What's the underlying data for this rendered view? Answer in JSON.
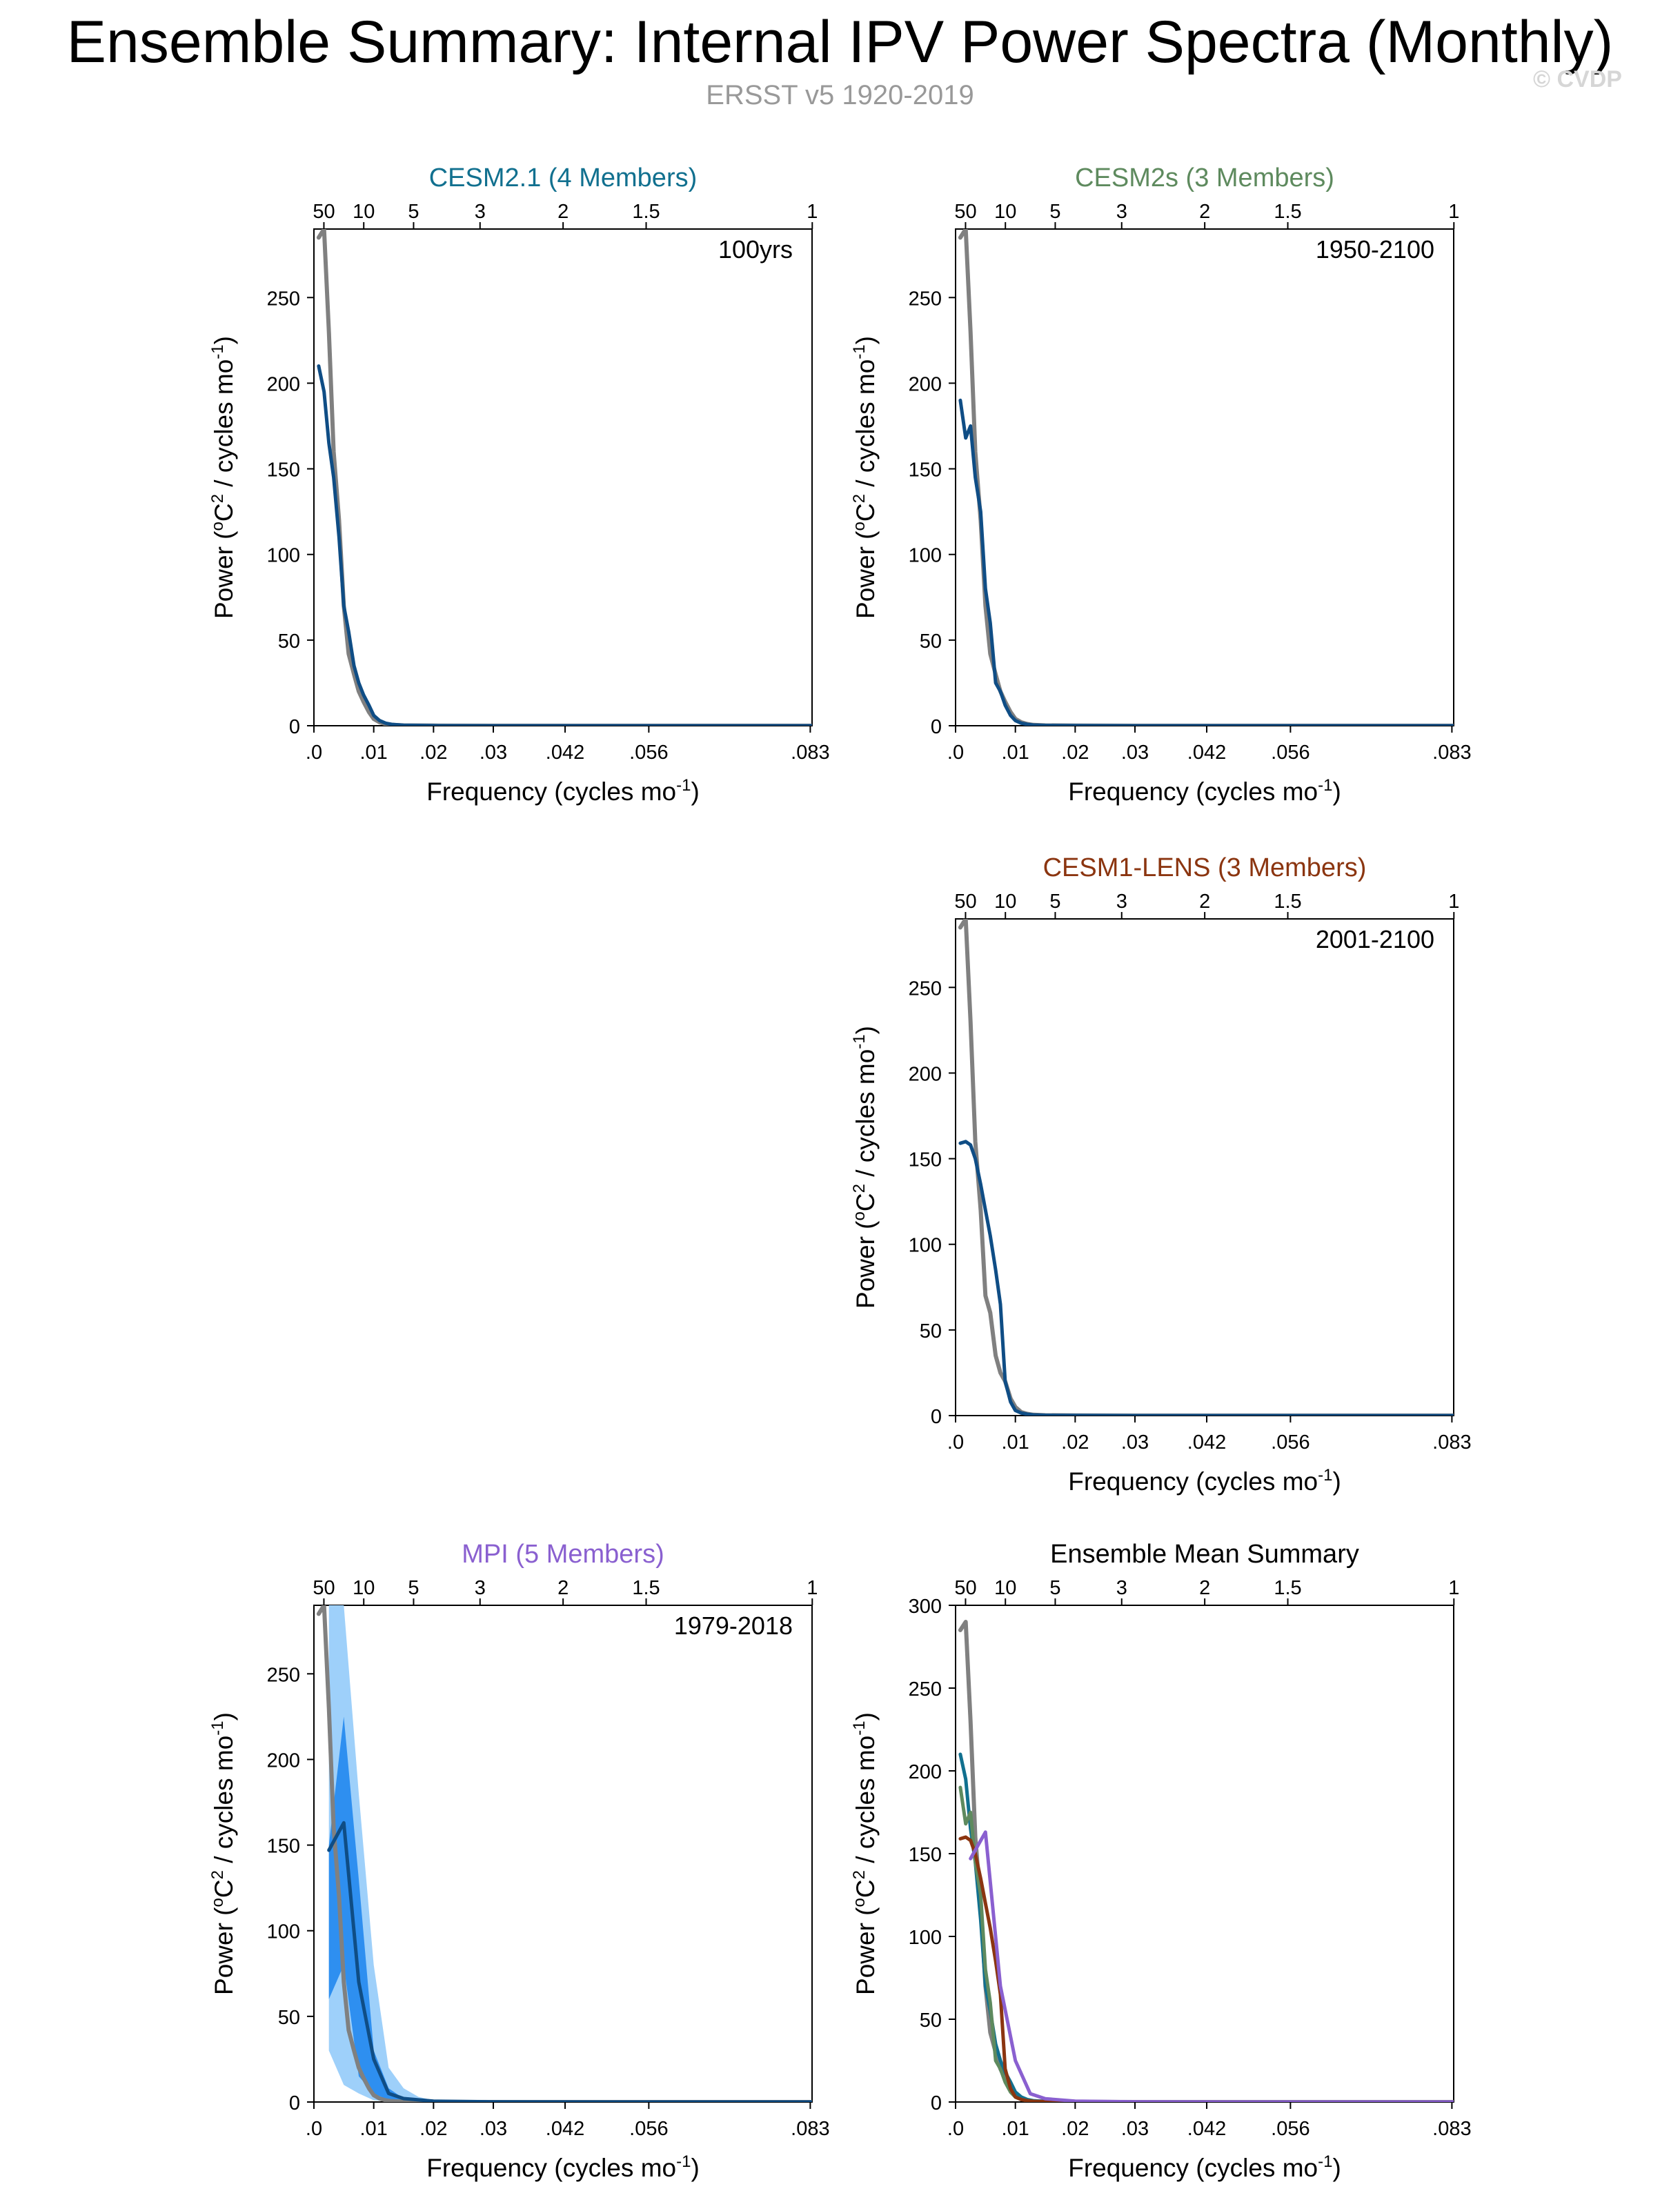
{
  "page": {
    "title": "Ensemble Summary: Internal IPV Power Spectra (Monthly)",
    "subtitle": "ERSST v5 1920-2019",
    "copyright": "© CVDP"
  },
  "colors": {
    "observed": "#808080",
    "model": "#0f4d85",
    "spread_outer": "#9ed0fa",
    "spread_inner": "#2e8ff0",
    "cesm21": "#11708f",
    "cesm2s": "#5e8a5e",
    "cesm1": "#8b3510",
    "mpi": "#8a60d0"
  },
  "chart_data": [
    {
      "type": "line",
      "title": "CESM2.1 (4 Members)",
      "title_color": "#11708f",
      "period": "100yrs",
      "xlabel": "Frequency (cycles mo",
      "xlabel_sup": "-1",
      "xlabel_end": ")",
      "ylabel": "Power (",
      "ylabel_sup1": "o",
      "ylabel_mid": "C",
      "ylabel_sup2": "2",
      "ylabel_mid2": " / cycles mo",
      "ylabel_sup3": "-1",
      "ylabel_end": ")",
      "xlim": [
        0,
        0.0833
      ],
      "ylim": [
        0,
        290
      ],
      "x_ticks": [
        0,
        0.01,
        0.02,
        0.03,
        0.042,
        0.056,
        0.083
      ],
      "x_tick_labels": [
        ".0",
        ".01",
        ".02",
        ".03",
        ".042",
        ".056",
        ".083"
      ],
      "y_ticks": [
        0,
        50,
        100,
        150,
        200,
        250
      ],
      "y_tick_labels": [
        "0",
        "50",
        "100",
        "150",
        "200",
        "250"
      ],
      "top_ticks": [
        0.001667,
        0.008333,
        0.016667,
        0.027778,
        0.041667,
        0.055556,
        0.083333
      ],
      "top_tick_labels": [
        "50",
        "10",
        "5",
        "3",
        "2",
        "1.5",
        "1"
      ],
      "series": [
        {
          "name": "ERSST v5",
          "role": "observed",
          "x": [
            0.0008,
            0.0017,
            0.0025,
            0.0033,
            0.0042,
            0.005,
            0.0058,
            0.0067,
            0.0075,
            0.0083,
            0.0092,
            0.01,
            0.011,
            0.012,
            0.013,
            0.015,
            0.02,
            0.03,
            0.05,
            0.0833
          ],
          "values": [
            285,
            290,
            230,
            160,
            120,
            70,
            42,
            30,
            20,
            14,
            8,
            4,
            2,
            1,
            0.5,
            0.2,
            0.1,
            0,
            0,
            0
          ]
        },
        {
          "name": "CESM2.1",
          "role": "model",
          "x": [
            0.0008,
            0.0017,
            0.0025,
            0.0033,
            0.0042,
            0.005,
            0.0058,
            0.0067,
            0.0075,
            0.0083,
            0.0092,
            0.01,
            0.011,
            0.012,
            0.013,
            0.015,
            0.02,
            0.03,
            0.05,
            0.0833
          ],
          "values": [
            210,
            195,
            165,
            145,
            110,
            70,
            55,
            35,
            25,
            18,
            12,
            6,
            3,
            1.5,
            0.8,
            0.3,
            0.1,
            0,
            0,
            0
          ]
        }
      ]
    },
    {
      "type": "line",
      "title": "CESM2s (3 Members)",
      "title_color": "#5e8a5e",
      "period": "1950-2100",
      "xlabel": "Frequency (cycles mo",
      "xlabel_sup": "-1",
      "xlabel_end": ")",
      "ylabel": "Power (",
      "ylabel_sup1": "o",
      "ylabel_mid": "C",
      "ylabel_sup2": "2",
      "ylabel_mid2": " / cycles mo",
      "ylabel_sup3": "-1",
      "ylabel_end": ")",
      "xlim": [
        0,
        0.0833
      ],
      "ylim": [
        0,
        290
      ],
      "x_ticks": [
        0,
        0.01,
        0.02,
        0.03,
        0.042,
        0.056,
        0.083
      ],
      "x_tick_labels": [
        ".0",
        ".01",
        ".02",
        ".03",
        ".042",
        ".056",
        ".083"
      ],
      "y_ticks": [
        0,
        50,
        100,
        150,
        200,
        250
      ],
      "y_tick_labels": [
        "0",
        "50",
        "100",
        "150",
        "200",
        "250"
      ],
      "top_ticks": [
        0.001667,
        0.008333,
        0.016667,
        0.027778,
        0.041667,
        0.055556,
        0.083333
      ],
      "top_tick_labels": [
        "50",
        "10",
        "5",
        "3",
        "2",
        "1.5",
        "1"
      ],
      "series": [
        {
          "name": "ERSST v5",
          "role": "observed",
          "x": [
            0.0008,
            0.0017,
            0.0025,
            0.0033,
            0.0042,
            0.005,
            0.0058,
            0.0067,
            0.0075,
            0.0083,
            0.0092,
            0.01,
            0.011,
            0.012,
            0.013,
            0.015,
            0.02,
            0.03,
            0.05,
            0.0833
          ],
          "values": [
            285,
            290,
            230,
            160,
            120,
            70,
            42,
            30,
            20,
            14,
            8,
            4,
            2,
            1,
            0.5,
            0.2,
            0.1,
            0,
            0,
            0
          ]
        },
        {
          "name": "CESM2s",
          "role": "model",
          "x": [
            0.0008,
            0.0017,
            0.0025,
            0.0033,
            0.0042,
            0.005,
            0.0058,
            0.0067,
            0.0075,
            0.0083,
            0.0092,
            0.01,
            0.011,
            0.012,
            0.013,
            0.015,
            0.02,
            0.03,
            0.05,
            0.0833
          ],
          "values": [
            190,
            168,
            175,
            145,
            125,
            80,
            60,
            25,
            20,
            12,
            6,
            3,
            1.5,
            0.8,
            0.4,
            0.2,
            0.1,
            0,
            0,
            0
          ]
        }
      ]
    },
    {
      "type": "line",
      "title": "CESM1-LENS (3 Members)",
      "title_color": "#8b3510",
      "period": "2001-2100",
      "xlabel": "Frequency (cycles mo",
      "xlabel_sup": "-1",
      "xlabel_end": ")",
      "ylabel": "Power (",
      "ylabel_sup1": "o",
      "ylabel_mid": "C",
      "ylabel_sup2": "2",
      "ylabel_mid2": " / cycles mo",
      "ylabel_sup3": "-1",
      "ylabel_end": ")",
      "xlim": [
        0,
        0.0833
      ],
      "ylim": [
        0,
        290
      ],
      "x_ticks": [
        0,
        0.01,
        0.02,
        0.03,
        0.042,
        0.056,
        0.083
      ],
      "x_tick_labels": [
        ".0",
        ".01",
        ".02",
        ".03",
        ".042",
        ".056",
        ".083"
      ],
      "y_ticks": [
        0,
        50,
        100,
        150,
        200,
        250
      ],
      "y_tick_labels": [
        "0",
        "50",
        "100",
        "150",
        "200",
        "250"
      ],
      "top_ticks": [
        0.001667,
        0.008333,
        0.016667,
        0.027778,
        0.041667,
        0.055556,
        0.083333
      ],
      "top_tick_labels": [
        "50",
        "10",
        "5",
        "3",
        "2",
        "1.5",
        "1"
      ],
      "series": [
        {
          "name": "ERSST v5",
          "role": "observed",
          "x": [
            0.0008,
            0.0017,
            0.0025,
            0.0033,
            0.0042,
            0.005,
            0.0058,
            0.0067,
            0.0075,
            0.0083,
            0.0092,
            0.01,
            0.011,
            0.012,
            0.013,
            0.015,
            0.02,
            0.03,
            0.05,
            0.0833
          ],
          "values": [
            285,
            290,
            230,
            160,
            120,
            70,
            60,
            35,
            25,
            20,
            10,
            5,
            2,
            1,
            0.5,
            0.2,
            0.1,
            0,
            0,
            0
          ]
        },
        {
          "name": "CESM1-LENS",
          "role": "model",
          "x": [
            0.0008,
            0.0017,
            0.0025,
            0.0033,
            0.0042,
            0.005,
            0.0058,
            0.0067,
            0.0075,
            0.0083,
            0.0092,
            0.01,
            0.011,
            0.012,
            0.013,
            0.015,
            0.02,
            0.03,
            0.05,
            0.0833
          ],
          "values": [
            159,
            160,
            158,
            150,
            135,
            120,
            105,
            85,
            65,
            20,
            8,
            3,
            1.5,
            0.8,
            0.4,
            0.2,
            0.1,
            0,
            0,
            0
          ]
        }
      ]
    },
    {
      "type": "area",
      "title": "MPI (5 Members)",
      "title_color": "#8a60d0",
      "period": "1979-2018",
      "xlabel": "Frequency (cycles mo",
      "xlabel_sup": "-1",
      "xlabel_end": ")",
      "ylabel": "Power (",
      "ylabel_sup1": "o",
      "ylabel_mid": "C",
      "ylabel_sup2": "2",
      "ylabel_mid2": " / cycles mo",
      "ylabel_sup3": "-1",
      "ylabel_end": ")",
      "xlim": [
        0,
        0.0833
      ],
      "ylim": [
        0,
        290
      ],
      "x_ticks": [
        0,
        0.01,
        0.02,
        0.03,
        0.042,
        0.056,
        0.083
      ],
      "x_tick_labels": [
        ".0",
        ".01",
        ".02",
        ".03",
        ".042",
        ".056",
        ".083"
      ],
      "y_ticks": [
        0,
        50,
        100,
        150,
        200,
        250
      ],
      "y_tick_labels": [
        "0",
        "50",
        "100",
        "150",
        "200",
        "250"
      ],
      "top_ticks": [
        0.001667,
        0.008333,
        0.016667,
        0.027778,
        0.041667,
        0.055556,
        0.083333
      ],
      "top_tick_labels": [
        "50",
        "10",
        "5",
        "3",
        "2",
        "1.5",
        "1"
      ],
      "bands": [
        {
          "name": "full-range",
          "role": "spread_outer",
          "x": [
            0.0025,
            0.005,
            0.0075,
            0.01,
            0.0125,
            0.015,
            0.0175,
            0.02,
            0.025,
            0.03,
            0.05,
            0.0833
          ],
          "lower": [
            30,
            10,
            5,
            1,
            0.5,
            0.2,
            0.1,
            0,
            0,
            0,
            0,
            0
          ],
          "upper": [
            290,
            290,
            180,
            80,
            20,
            8,
            3,
            1,
            0.5,
            0.2,
            0,
            0
          ]
        },
        {
          "name": "inner-range",
          "role": "spread_inner",
          "x": [
            0.0025,
            0.005,
            0.0075,
            0.01,
            0.0125,
            0.015,
            0.0175,
            0.02
          ],
          "lower": [
            60,
            80,
            15,
            5,
            1,
            0.5,
            0.2,
            0
          ],
          "upper": [
            150,
            225,
            130,
            30,
            8,
            2,
            1,
            0.5
          ]
        }
      ],
      "series": [
        {
          "name": "ERSST v5",
          "role": "observed",
          "x": [
            0.0008,
            0.0017,
            0.0025,
            0.0033,
            0.0042,
            0.005,
            0.0058,
            0.0067,
            0.0075,
            0.0083,
            0.0092,
            0.01,
            0.011,
            0.012,
            0.013,
            0.015,
            0.02,
            0.03,
            0.05,
            0.0833
          ],
          "values": [
            285,
            290,
            230,
            160,
            120,
            70,
            42,
            30,
            20,
            14,
            8,
            4,
            2,
            1,
            0.5,
            0.2,
            0.1,
            0,
            0,
            0
          ]
        },
        {
          "name": "MPI",
          "role": "model",
          "x": [
            0.0025,
            0.005,
            0.0075,
            0.01,
            0.0125,
            0.015,
            0.02,
            0.03,
            0.05,
            0.0833
          ],
          "values": [
            147,
            163,
            70,
            25,
            5,
            2,
            0.5,
            0.1,
            0,
            0
          ]
        }
      ]
    },
    {
      "type": "line",
      "title": "Ensemble Mean Summary",
      "title_color": "#000000",
      "period": "",
      "xlabel": "Frequency (cycles mo",
      "xlabel_sup": "-1",
      "xlabel_end": ")",
      "ylabel": "Power (",
      "ylabel_sup1": "o",
      "ylabel_mid": "C",
      "ylabel_sup2": "2",
      "ylabel_mid2": " / cycles mo",
      "ylabel_sup3": "-1",
      "ylabel_end": ")",
      "xlim": [
        0,
        0.0833
      ],
      "ylim": [
        0,
        300
      ],
      "x_ticks": [
        0,
        0.01,
        0.02,
        0.03,
        0.042,
        0.056,
        0.083
      ],
      "x_tick_labels": [
        ".0",
        ".01",
        ".02",
        ".03",
        ".042",
        ".056",
        ".083"
      ],
      "y_ticks": [
        0,
        50,
        100,
        150,
        200,
        250,
        300
      ],
      "y_tick_labels": [
        "0",
        "50",
        "100",
        "150",
        "200",
        "250",
        "300"
      ],
      "top_ticks": [
        0.001667,
        0.008333,
        0.016667,
        0.027778,
        0.041667,
        0.055556,
        0.083333
      ],
      "top_tick_labels": [
        "50",
        "10",
        "5",
        "3",
        "2",
        "1.5",
        "1"
      ],
      "series": [
        {
          "name": "ERSST v5",
          "role": "observed",
          "x": [
            0.0008,
            0.0017,
            0.0025,
            0.0033,
            0.0042,
            0.005,
            0.0058,
            0.0067,
            0.0075,
            0.0083,
            0.0092,
            0.01,
            0.011,
            0.012,
            0.013,
            0.015,
            0.02,
            0.03,
            0.05,
            0.0833
          ],
          "values": [
            285,
            290,
            230,
            160,
            120,
            70,
            42,
            30,
            20,
            14,
            8,
            4,
            2,
            1,
            0.5,
            0.2,
            0.1,
            0,
            0,
            0
          ]
        },
        {
          "name": "CESM2.1",
          "role": "cesm21",
          "x": [
            0.0008,
            0.0017,
            0.0025,
            0.0033,
            0.0042,
            0.005,
            0.0058,
            0.0067,
            0.0075,
            0.0083,
            0.0092,
            0.01,
            0.011,
            0.012,
            0.013,
            0.015,
            0.02,
            0.03,
            0.05,
            0.0833
          ],
          "values": [
            210,
            195,
            165,
            145,
            110,
            70,
            55,
            35,
            25,
            18,
            12,
            6,
            3,
            1.5,
            0.8,
            0.3,
            0.1,
            0,
            0,
            0
          ]
        },
        {
          "name": "CESM2s",
          "role": "cesm2s",
          "x": [
            0.0008,
            0.0017,
            0.0025,
            0.0033,
            0.0042,
            0.005,
            0.0058,
            0.0067,
            0.0075,
            0.0083,
            0.0092,
            0.01,
            0.011,
            0.012,
            0.013,
            0.015,
            0.02,
            0.03,
            0.05,
            0.0833
          ],
          "values": [
            190,
            168,
            175,
            145,
            125,
            80,
            60,
            25,
            20,
            12,
            6,
            3,
            1.5,
            0.8,
            0.4,
            0.2,
            0.1,
            0,
            0,
            0
          ]
        },
        {
          "name": "CESM1-LENS",
          "role": "cesm1",
          "x": [
            0.0008,
            0.0017,
            0.0025,
            0.0033,
            0.0042,
            0.005,
            0.0058,
            0.0067,
            0.0075,
            0.0083,
            0.0092,
            0.01,
            0.011,
            0.012,
            0.013,
            0.015,
            0.02,
            0.03,
            0.05,
            0.0833
          ],
          "values": [
            159,
            160,
            158,
            150,
            135,
            120,
            105,
            85,
            65,
            20,
            8,
            3,
            1.5,
            0.8,
            0.4,
            0.2,
            0.1,
            0,
            0,
            0
          ]
        },
        {
          "name": "MPI",
          "role": "mpi",
          "x": [
            0.0025,
            0.005,
            0.0075,
            0.01,
            0.0125,
            0.015,
            0.02,
            0.03,
            0.05,
            0.0833
          ],
          "values": [
            147,
            163,
            70,
            25,
            5,
            2,
            0.5,
            0.1,
            0,
            0
          ]
        }
      ]
    }
  ]
}
